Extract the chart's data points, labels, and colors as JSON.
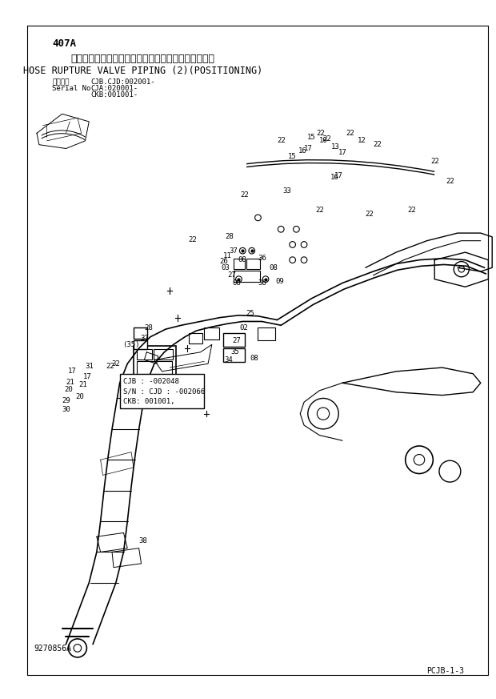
{
  "title_jp": "ホースラプチャバルブ配管（２）（ポジショニング）",
  "title_en": "HOSE RUPTURE VALVE PIPING (2)(POSITIONING)",
  "diagram_id": "407A",
  "serial_label": "適用号機",
  "serial_no_label": "Serial No.",
  "serial_info_1": "CJB.CJD:002001-",
  "serial_info_2": "CJA:020001-",
  "serial_info_3": "CKB:001001-",
  "drawing_no": "9270856A",
  "page_no": "PCJB-1-3",
  "callout_box_text": [
    "CJB : -002048",
    "S/N : CJD : -002066",
    "CKB: 001001,"
  ],
  "callout_box_label": "(35)",
  "bg_color": "#ffffff",
  "line_color": "#000000",
  "text_color": "#000000"
}
